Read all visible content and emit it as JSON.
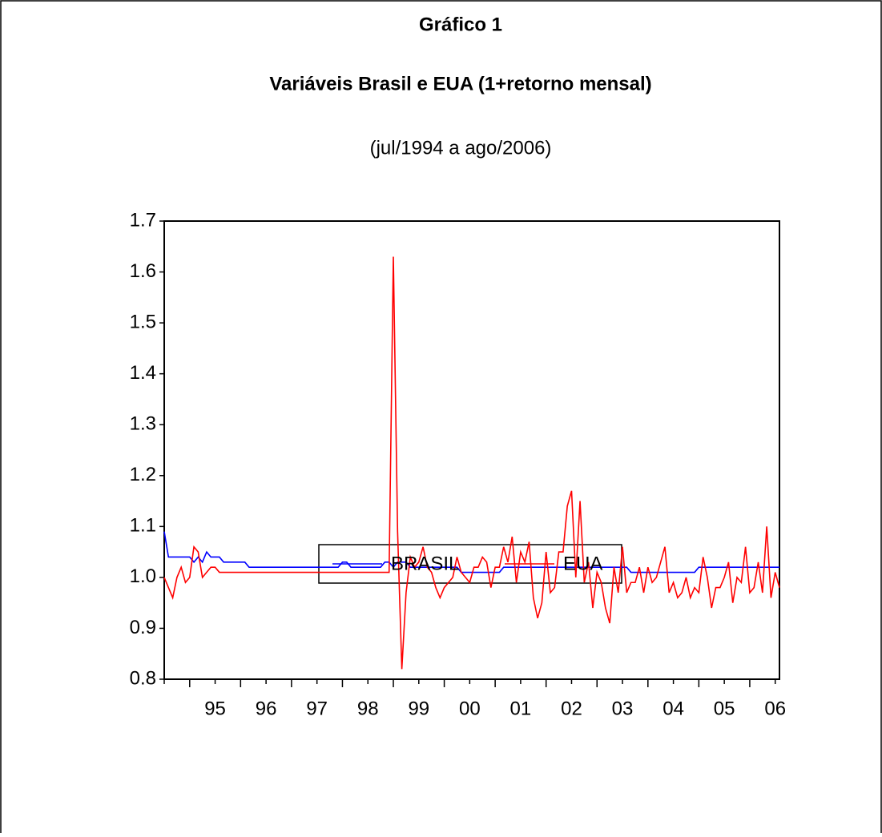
{
  "chart_data": {
    "type": "line",
    "title": "Gráfico 1",
    "subtitle": "Variáveis Brasil e EUA (1+retorno mensal)",
    "period": "(jul/1994 a ago/2006)",
    "categories": [
      null,
      null,
      null,
      null,
      null,
      null,
      null,
      null,
      null,
      null,
      null,
      null,
      "95",
      null,
      null,
      null,
      null,
      null,
      null,
      null,
      null,
      null,
      null,
      null,
      "96",
      null,
      null,
      null,
      null,
      null,
      null,
      null,
      null,
      null,
      null,
      null,
      "97",
      null,
      null,
      null,
      null,
      null,
      null,
      null,
      null,
      null,
      null,
      null,
      "98",
      null,
      null,
      null,
      null,
      null,
      null,
      null,
      null,
      null,
      null,
      null,
      "99",
      null,
      null,
      null,
      null,
      null,
      null,
      null,
      null,
      null,
      null,
      null,
      "00",
      null,
      null,
      null,
      null,
      null,
      null,
      null,
      null,
      null,
      null,
      null,
      "01",
      null,
      null,
      null,
      null,
      null,
      null,
      null,
      null,
      null,
      null,
      null,
      "02",
      null,
      null,
      null,
      null,
      null,
      null,
      null,
      null,
      null,
      null,
      null,
      "03",
      null,
      null,
      null,
      null,
      null,
      null,
      null,
      null,
      null,
      null,
      null,
      "04",
      null,
      null,
      null,
      null,
      null,
      null,
      null,
      null,
      null,
      null,
      null,
      "05",
      null,
      null,
      null,
      null,
      null,
      null,
      null,
      null,
      null,
      null,
      null,
      "06",
      null
    ],
    "series": [
      {
        "name": "BRASIL",
        "color": "#0000ff",
        "values": [
          1.09,
          1.04,
          1.04,
          1.04,
          1.04,
          1.04,
          1.04,
          1.03,
          1.04,
          1.03,
          1.05,
          1.04,
          1.04,
          1.04,
          1.03,
          1.03,
          1.03,
          1.03,
          1.03,
          1.03,
          1.02,
          1.02,
          1.02,
          1.02,
          1.02,
          1.02,
          1.02,
          1.02,
          1.02,
          1.02,
          1.02,
          1.02,
          1.02,
          1.02,
          1.02,
          1.02,
          1.02,
          1.02,
          1.02,
          1.02,
          1.02,
          1.02,
          1.03,
          1.03,
          1.02,
          1.02,
          1.02,
          1.02,
          1.02,
          1.02,
          1.02,
          1.02,
          1.03,
          1.03,
          1.02,
          1.03,
          1.03,
          1.03,
          1.02,
          1.02,
          1.02,
          1.02,
          1.02,
          1.02,
          1.02,
          1.02,
          1.02,
          1.02,
          1.02,
          1.02,
          1.01,
          1.01,
          1.01,
          1.01,
          1.01,
          1.01,
          1.01,
          1.01,
          1.01,
          1.01,
          1.02,
          1.02,
          1.02,
          1.02,
          1.02,
          1.02,
          1.02,
          1.02,
          1.02,
          1.02,
          1.02,
          1.02,
          1.02,
          1.02,
          1.02,
          1.02,
          1.02,
          1.02,
          1.02,
          1.02,
          1.02,
          1.02,
          1.02,
          1.02,
          1.02,
          1.02,
          1.02,
          1.02,
          1.02,
          1.02,
          1.01,
          1.01,
          1.01,
          1.01,
          1.01,
          1.01,
          1.01,
          1.01,
          1.01,
          1.01,
          1.01,
          1.01,
          1.01,
          1.01,
          1.01,
          1.01,
          1.02,
          1.02,
          1.02,
          1.02,
          1.02,
          1.02,
          1.02,
          1.02,
          1.02,
          1.02,
          1.02,
          1.02,
          1.02,
          1.02,
          1.02,
          1.02,
          1.02,
          1.02,
          1.02,
          1.02
        ]
      },
      {
        "name": "EUA",
        "color": "#ff0000",
        "values": [
          1.0,
          0.98,
          0.96,
          1.0,
          1.02,
          0.99,
          1.0,
          1.06,
          1.05,
          1.0,
          1.01,
          1.02,
          1.02,
          1.01,
          1.01,
          1.01,
          1.01,
          1.01,
          1.01,
          1.01,
          1.01,
          1.01,
          1.01,
          1.01,
          1.01,
          1.01,
          1.01,
          1.01,
          1.01,
          1.01,
          1.01,
          1.01,
          1.01,
          1.01,
          1.01,
          1.01,
          1.01,
          1.01,
          1.01,
          1.01,
          1.01,
          1.01,
          1.01,
          1.01,
          1.01,
          1.01,
          1.01,
          1.01,
          1.01,
          1.01,
          1.01,
          1.01,
          1.01,
          1.01,
          1.63,
          1.09,
          0.82,
          0.97,
          1.04,
          1.02,
          1.03,
          1.06,
          1.02,
          1.01,
          0.98,
          0.96,
          0.98,
          0.99,
          1.0,
          1.04,
          1.01,
          1.0,
          0.99,
          1.02,
          1.02,
          1.04,
          1.03,
          0.98,
          1.02,
          1.02,
          1.06,
          1.03,
          1.08,
          0.99,
          1.05,
          1.03,
          1.07,
          0.96,
          0.92,
          0.95,
          1.05,
          0.97,
          0.98,
          1.05,
          1.05,
          1.14,
          1.17,
          1.0,
          1.15,
          0.99,
          1.03,
          0.94,
          1.01,
          0.99,
          0.94,
          0.91,
          1.02,
          0.97,
          1.06,
          0.97,
          0.99,
          0.99,
          1.02,
          0.97,
          1.02,
          0.99,
          1.0,
          1.03,
          1.06,
          0.97,
          0.99,
          0.96,
          0.97,
          1.0,
          0.96,
          0.98,
          0.97,
          1.04,
          1.0,
          0.94,
          0.98,
          0.98,
          1.0,
          1.03,
          0.95,
          1.0,
          0.99,
          1.06,
          0.97,
          0.98,
          1.03,
          0.97,
          1.1,
          0.96,
          1.01,
          0.98
        ]
      }
    ],
    "ylim": [
      0.8,
      1.7
    ],
    "yticks": [
      0.8,
      0.9,
      {
        "value": 1,
        "label": "1.0"
      },
      1.1,
      1.2,
      1.3,
      1.4,
      1.5,
      1.6,
      1.7
    ],
    "grid": false
  }
}
